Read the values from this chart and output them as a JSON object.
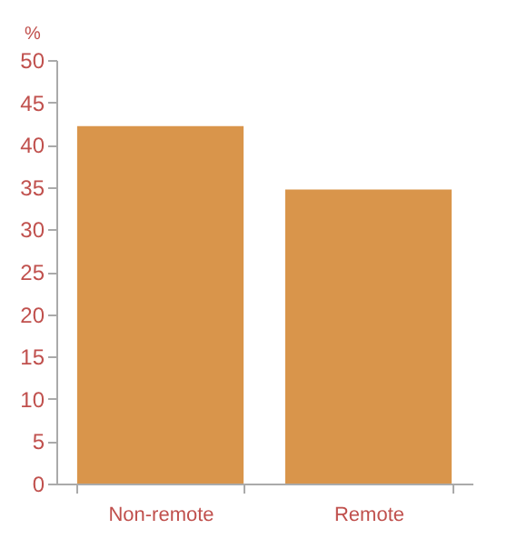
{
  "chart_data": {
    "type": "bar",
    "ylabel": "%",
    "categories": [
      "Non-remote",
      "Remote"
    ],
    "values": [
      42.2,
      34.7
    ],
    "color": "#d9954b",
    "ylim": [
      0,
      50
    ],
    "yticks": [
      0,
      5,
      10,
      15,
      20,
      25,
      30,
      35,
      40,
      45,
      50
    ],
    "grid": false
  }
}
